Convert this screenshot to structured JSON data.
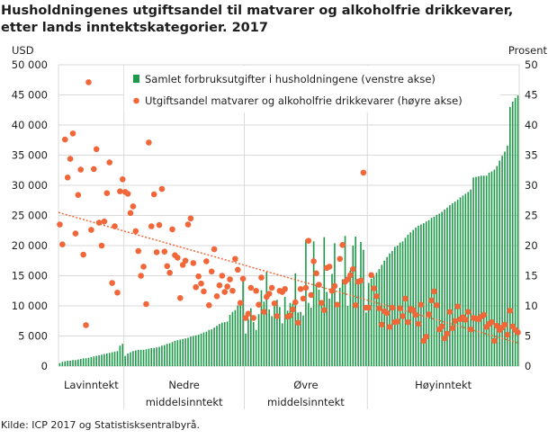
{
  "title": "Husholdningenes utgiftsandel til matvarer og alkoholfrie drikkevarer, etter lands inntektskategorier. 2017",
  "source": "Kilde: ICP 2017 og Statistisksentralbyrå.",
  "chart_data": {
    "type": "bar+scatter",
    "title": "Husholdningenes utgiftsandel til matvarer og alkoholfrie drikkevarer, etter lands inntektskategorier. 2017",
    "left_axis": {
      "label": "USD",
      "ylim": [
        0,
        50000
      ],
      "ticks": [
        "0",
        "5 000",
        "10 000",
        "15 000",
        "20 000",
        "25 000",
        "30 000",
        "35 000",
        "40 000",
        "45 000",
        "50 000"
      ]
    },
    "right_axis": {
      "label": "Prosent",
      "ylim": [
        0,
        50
      ],
      "ticks": [
        "0",
        "5",
        "10",
        "15",
        "20",
        "25",
        "30",
        "35",
        "40",
        "45",
        "50"
      ]
    },
    "grid": true,
    "legend_position": "top",
    "colors": {
      "bars": "#1d9a48",
      "dots": "#f2673a",
      "grid": "#d9d9d9"
    },
    "groups": [
      {
        "label": [
          "Lavinntekt"
        ],
        "bars": [
          500,
          700,
          800,
          900,
          900,
          1000,
          1000,
          1100,
          1200,
          1300,
          1300,
          1400,
          1500,
          1600,
          1700,
          1800,
          1900,
          2000,
          2100,
          2200,
          2300,
          2400,
          2500,
          3400,
          3700
        ],
        "shares": [
          23.5,
          20.2,
          37.6,
          31.3,
          34.4,
          38.6,
          22.0,
          28.4,
          32.6,
          18.5,
          6.8,
          47.1,
          22.6,
          32.7,
          36.0,
          23.8,
          20.0,
          24.0,
          28.7,
          33.8,
          13.8,
          23.2,
          12.2,
          29.0,
          31.0
        ]
      },
      {
        "label": [
          "Nedre",
          "middelsinntekt"
        ],
        "bars": [
          1700,
          2100,
          2300,
          2500,
          2600,
          2700,
          2700,
          2700,
          2800,
          2900,
          3000,
          3000,
          3100,
          3200,
          3400,
          3500,
          3700,
          3800,
          4000,
          4200,
          4300,
          4400,
          4500,
          4600,
          4700,
          4900,
          5000,
          5100,
          5200,
          5400,
          5600,
          5700,
          6000,
          6100,
          6400,
          6700,
          7000,
          7200,
          7300,
          7400,
          8500,
          9000,
          9300,
          10100,
          10200,
          14500
        ],
        "shares": [
          28.9,
          28.6,
          25.4,
          26.5,
          22.4,
          19.1,
          15.0,
          16.5,
          10.3,
          37.1,
          23.2,
          28.5,
          18.9,
          23.4,
          29.4,
          19.0,
          16.6,
          15.5,
          22.7,
          18.4,
          18.0,
          11.3,
          16.8,
          17.5,
          23.5,
          24.5,
          17.1,
          13.1,
          14.9,
          13.7,
          12.4,
          17.4,
          10.1,
          15.7,
          19.4,
          11.6,
          13.4,
          15.0,
          12.3,
          13.2,
          14.4,
          12.5,
          17.8,
          16.0,
          10.5,
          14.5
        ]
      },
      {
        "label": [
          "Øvre",
          "middelsinntekt"
        ],
        "bars": [
          5400,
          7800,
          9600,
          7300,
          6000,
          8600,
          12600,
          10700,
          15600,
          9400,
          8300,
          10600,
          11000,
          9800,
          7100,
          11500,
          9200,
          10500,
          10400,
          15400,
          8900,
          9000,
          8400,
          21000,
          10500,
          9700,
          20700,
          13700,
          12700,
          10000,
          21400,
          12300,
          11200,
          15300,
          20400,
          9700,
          13000,
          14400,
          21600,
          10000,
          15900,
          20000,
          21500,
          14200,
          20600,
          19300,
          8900
        ],
        "shares": [
          8.0,
          8.7,
          13.0,
          8.0,
          12.5,
          10.2,
          14.7,
          9.0,
          11.5,
          12.0,
          13.0,
          10.4,
          8.3,
          12.5,
          12.3,
          12.8,
          8.2,
          8.4,
          9.4,
          10.6,
          7.2,
          12.8,
          11.2,
          13.0,
          20.8,
          11.8,
          17.4,
          15.4,
          13.5,
          10.5,
          9.3,
          16.3,
          16.5,
          12.5,
          13.3,
          10.2,
          17.8,
          20.1,
          14.0,
          14.4,
          15.1,
          16.1,
          10.1,
          14.0,
          14.2,
          32.1,
          9.7
        ]
      },
      {
        "label": [
          "Høyinntekt"
        ],
        "bars": [
          13800,
          14500,
          14900,
          15500,
          16100,
          16800,
          17500,
          18100,
          18700,
          19100,
          19800,
          20000,
          20500,
          20700,
          21300,
          21800,
          22200,
          22600,
          23000,
          23300,
          23500,
          23700,
          24000,
          24200,
          24600,
          24800,
          25100,
          25300,
          25600,
          26000,
          26300,
          26700,
          27000,
          27300,
          27600,
          28000,
          28300,
          28600,
          28900,
          29300,
          31300,
          31400,
          31500,
          31600,
          31600,
          31600,
          32100,
          32300,
          32600,
          33200,
          34100,
          34900,
          35600,
          36600,
          43000,
          43900,
          44500,
          44900
        ],
        "shares": [
          9.7,
          15.1,
          12.9,
          11.6,
          9.6,
          6.9,
          9.1,
          8.8,
          6.5,
          9.7,
          7.3,
          7.4,
          9.6,
          8.3,
          11.2,
          7.3,
          9.5,
          9.3,
          8.5,
          7.0,
          10.2,
          4.2,
          4.9,
          8.6,
          10.9,
          12.4,
          10.1,
          6.1,
          6.6,
          4.6,
          5.4,
          9.0,
          6.3,
          7.5,
          9.9,
          7.8,
          8.1,
          7.7,
          9.0,
          6.1,
          8.0,
          7.9,
          7.8,
          8.2,
          8.5,
          6.5,
          7.0,
          7.3,
          4.2,
          6.7,
          6.0,
          6.4,
          6.9,
          5.2,
          9.2,
          6.6,
          6.0,
          5.6
        ]
      }
    ],
    "trendline": {
      "style": "dotted",
      "start": 25.5,
      "end": 3.8
    },
    "legend": [
      "Samlet forbruksutgifter i husholdningene (venstre akse)",
      "Utgiftsandel matvarer og alkoholfrie drikkevarer (høyre akse)"
    ]
  }
}
